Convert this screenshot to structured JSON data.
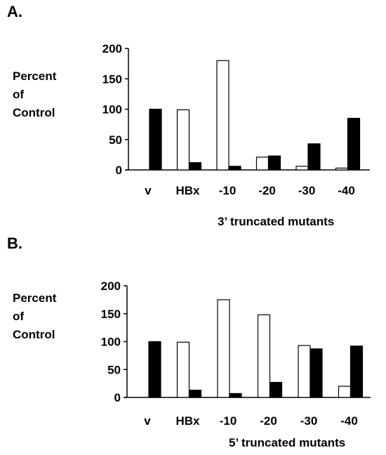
{
  "chart_data": [
    {
      "type": "bar",
      "panel_label": "A.",
      "ylabel": [
        "Percent",
        "of",
        "Control"
      ],
      "xlabel": "3’ truncated mutants",
      "categories": [
        "v",
        "HBx",
        "-10",
        "-20",
        "-30",
        "-40"
      ],
      "yticks": [
        0,
        50,
        100,
        150,
        200
      ],
      "ylim": [
        0,
        200
      ],
      "series": [
        {
          "fill": "#ffffff",
          "values": [
            0,
            99,
            180,
            21,
            6,
            3
          ]
        },
        {
          "fill": "#000000",
          "values": [
            100,
            12,
            6,
            23,
            43,
            85
          ]
        }
      ]
    },
    {
      "type": "bar",
      "panel_label": "B.",
      "ylabel": [
        "Percent",
        "of",
        "Control"
      ],
      "xlabel": "5’ truncated mutants",
      "categories": [
        "v",
        "HBx",
        "-10",
        "-20",
        "-30",
        "-40"
      ],
      "yticks": [
        0,
        50,
        100,
        150,
        200
      ],
      "ylim": [
        0,
        200
      ],
      "series": [
        {
          "fill": "#ffffff",
          "values": [
            0,
            99,
            175,
            148,
            93,
            20
          ]
        },
        {
          "fill": "#000000",
          "values": [
            100,
            13,
            7,
            27,
            87,
            92
          ]
        }
      ]
    }
  ]
}
